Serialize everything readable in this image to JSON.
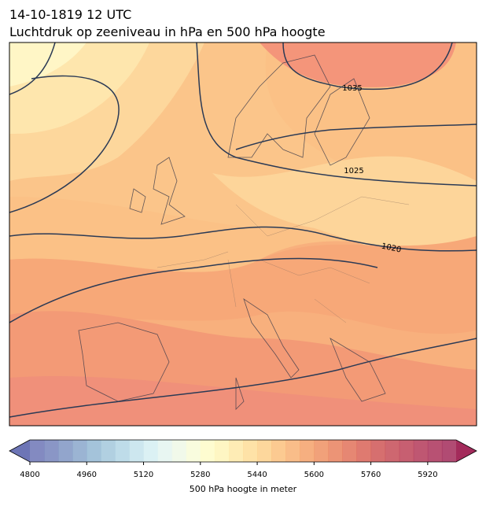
{
  "title": "14-10-1819 12 UTC",
  "subtitle": "Luchtdruk op zeeniveau in hPa en 500 hPa hoogte",
  "isobar_labels": [
    1035,
    1025,
    1020
  ],
  "colorbar": {
    "label": "500 hPa hoogte in meter",
    "lim": [
      4800,
      6000
    ],
    "ticks": [
      4800,
      4960,
      5120,
      5280,
      5440,
      5600,
      5760,
      5920
    ],
    "colors": [
      "#6d75b6",
      "#7684bc",
      "#7f95c3",
      "#89a7cb",
      "#94b8d3",
      "#a3c8dc",
      "#b3d6e5",
      "#c4e3ec",
      "#d5eef2",
      "#e4f4f0",
      "#eff8e6",
      "#f8fbd8",
      "#fefcc8",
      "#fef4b8",
      "#fee9a8",
      "#fedd98",
      "#fdd08b",
      "#fbc17e",
      "#f8b174",
      "#f4a16a",
      "#ef9163",
      "#e9815e",
      "#e2725a",
      "#d96357",
      "#cf5656",
      "#c64c57",
      "#bd4358",
      "#b43a59",
      "#ab325a",
      "#a32b5b"
    ]
  }
}
